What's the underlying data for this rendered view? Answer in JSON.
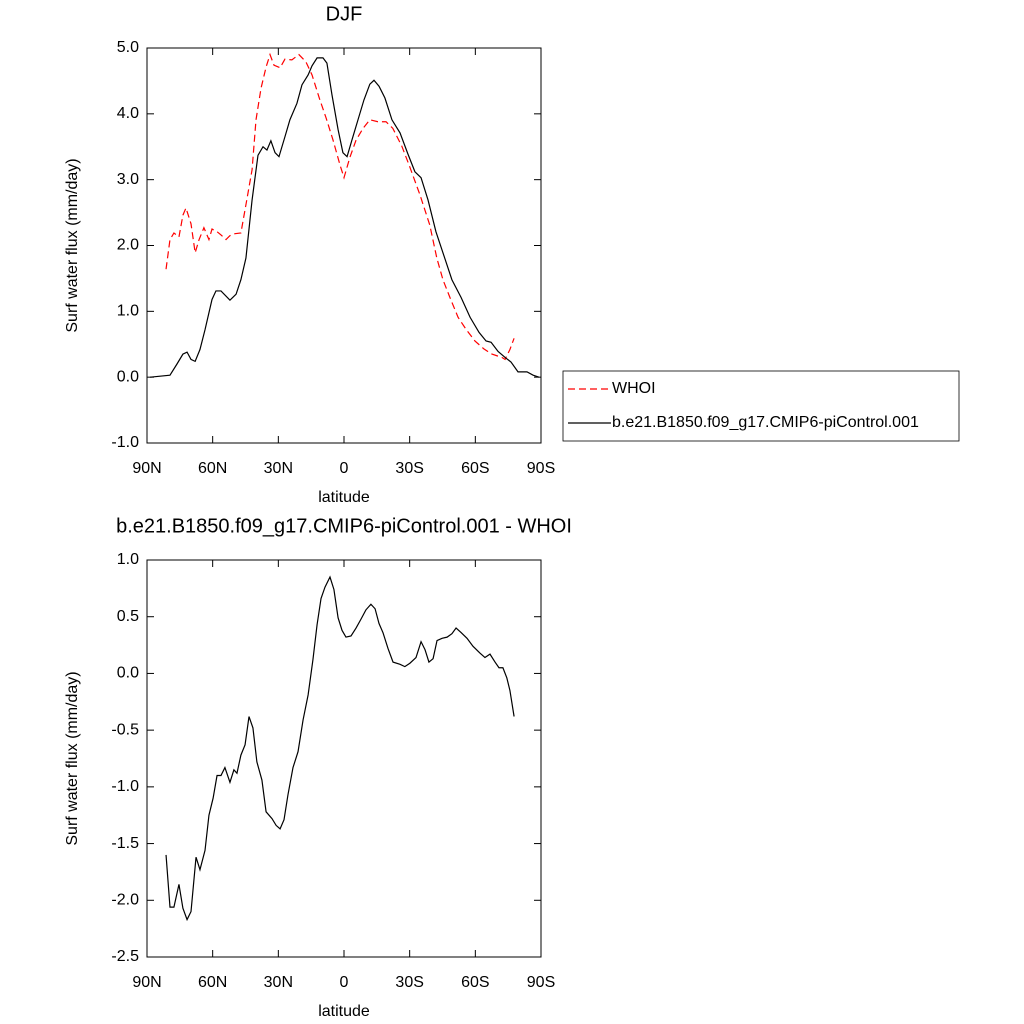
{
  "chart_data": [
    {
      "type": "line",
      "title": "DJF",
      "xlabel": "latitude",
      "ylabel": "Surf water flux (mm/day)",
      "xlim": [
        90,
        -90
      ],
      "xticks": [
        {
          "value": 90,
          "label": "90N"
        },
        {
          "value": 60,
          "label": "60N"
        },
        {
          "value": 30,
          "label": "30N"
        },
        0,
        {
          "value": -30,
          "label": "30S"
        },
        {
          "value": -60,
          "label": "60S"
        },
        {
          "value": -90,
          "label": "90S"
        }
      ],
      "ylim": [
        -1,
        5
      ],
      "yticks": [
        {
          "value": -1,
          "label": "-1.0"
        },
        {
          "value": 0,
          "label": "0.0"
        },
        {
          "value": 1,
          "label": "1.0"
        },
        {
          "value": 2,
          "label": "2.0"
        },
        {
          "value": 3,
          "label": "3.0"
        },
        {
          "value": 4,
          "label": "4.0"
        },
        {
          "value": 5,
          "label": "5.0"
        }
      ],
      "legend": "right",
      "series": [
        {
          "name": "WHOI",
          "color": "#ff0000",
          "dashed": true,
          "x": [
            81.3,
            79.5,
            77.7,
            75.4,
            73.6,
            72.2,
            69.9,
            68,
            66.2,
            64,
            61.7,
            60.3,
            58,
            56.2,
            53.9,
            52.1,
            49.8,
            47.1,
            44.8,
            42,
            40.2,
            37.9,
            35.6,
            33.8,
            32,
            29.2,
            27,
            23.8,
            20.6,
            17.4,
            14.6,
            11,
            8.2,
            5,
            1.8,
            0,
            -2.7,
            -5.5,
            -8.7,
            -11.8,
            -15.5,
            -19.2,
            -22.3,
            -26.4,
            -30.1,
            -34.7,
            -39.2,
            -42.4,
            -45.2,
            -48.4,
            -52.1,
            -55.7,
            -59.8,
            -63.9,
            -67.6,
            -72.1,
            -73.6,
            -75.8,
            -77.7
          ],
          "values": [
            1.64,
            2.09,
            2.19,
            2.13,
            2.46,
            2.57,
            2.33,
            1.89,
            2.09,
            2.27,
            2.09,
            2.25,
            2.21,
            2.16,
            2.09,
            2.15,
            2.18,
            2.19,
            2.62,
            3.15,
            3.91,
            4.39,
            4.71,
            4.9,
            4.74,
            4.7,
            4.83,
            4.82,
            4.9,
            4.79,
            4.59,
            4.21,
            3.94,
            3.6,
            3.22,
            3.03,
            3.34,
            3.6,
            3.78,
            3.91,
            3.88,
            3.88,
            3.78,
            3.51,
            3.19,
            2.77,
            2.31,
            1.81,
            1.48,
            1.21,
            0.91,
            0.73,
            0.55,
            0.43,
            0.35,
            0.3,
            0.27,
            0.42,
            0.59
          ]
        },
        {
          "name": "b.e21.B1850.f09_g17.CMIP6-piControl.001",
          "color": "#000000",
          "dashed": false,
          "x": [
            88.6,
            79.5,
            76.3,
            73.6,
            71.7,
            69.9,
            68,
            65.8,
            63.5,
            60.3,
            58.5,
            56.2,
            52.1,
            49.3,
            47.1,
            44.8,
            42,
            39.3,
            37,
            35.2,
            33.4,
            31.5,
            29.7,
            27,
            24.7,
            21.5,
            19.2,
            16.4,
            14.6,
            12.3,
            9.6,
            7.8,
            5.5,
            2.7,
            0.5,
            -1.4,
            -3.6,
            -6.4,
            -9.1,
            -11.8,
            -13.7,
            -16,
            -18.7,
            -21.9,
            -25.6,
            -29.2,
            -32.4,
            -35.2,
            -38.4,
            -42,
            -46.2,
            -49.3,
            -53.5,
            -57.6,
            -61.7,
            -64.9,
            -67.2,
            -70.4,
            -73.6,
            -76.3,
            -79.5,
            -83.6,
            -86.4,
            -89.1
          ],
          "values": [
            0,
            0.03,
            0.2,
            0.35,
            0.38,
            0.27,
            0.24,
            0.42,
            0.72,
            1.18,
            1.31,
            1.31,
            1.17,
            1.26,
            1.48,
            1.81,
            2.69,
            3.37,
            3.5,
            3.45,
            3.59,
            3.41,
            3.35,
            3.65,
            3.91,
            4.16,
            4.44,
            4.59,
            4.73,
            4.85,
            4.85,
            4.77,
            4.29,
            3.76,
            3.41,
            3.35,
            3.6,
            3.91,
            4.21,
            4.45,
            4.51,
            4.42,
            4.24,
            3.91,
            3.71,
            3.39,
            3.12,
            3.03,
            2.69,
            2.21,
            1.79,
            1.48,
            1.21,
            0.91,
            0.68,
            0.55,
            0.53,
            0.39,
            0.3,
            0.23,
            0.08,
            0.08,
            0.03,
            0
          ]
        }
      ]
    },
    {
      "type": "line",
      "title": "b.e21.B1850.f09_g17.CMIP6-piControl.001 - WHOI",
      "xlabel": "latitude",
      "ylabel": "Surf water flux (mm/day)",
      "xlim": [
        90,
        -90
      ],
      "xticks": [
        {
          "value": 90,
          "label": "90N"
        },
        {
          "value": 60,
          "label": "60N"
        },
        {
          "value": 30,
          "label": "30N"
        },
        0,
        {
          "value": -30,
          "label": "30S"
        },
        {
          "value": -60,
          "label": "60S"
        },
        {
          "value": -90,
          "label": "90S"
        }
      ],
      "ylim": [
        -2.5,
        1
      ],
      "yticks": [
        -2.5,
        {
          "value": -2,
          "label": "-2.0"
        },
        -1.5,
        {
          "value": -1,
          "label": "-1.0"
        },
        -0.5,
        {
          "value": 0,
          "label": "0.0"
        },
        0.5,
        {
          "value": 1,
          "label": "1.0"
        }
      ],
      "series": [
        {
          "color": "#000000",
          "dashed": false,
          "x": [
            81.3,
            79.5,
            77.7,
            75.4,
            73.6,
            71.7,
            69.9,
            67.6,
            65.8,
            63.5,
            61.7,
            59.8,
            58,
            56.2,
            54.4,
            52.1,
            50.3,
            48.9,
            47.1,
            45.2,
            43.4,
            41.6,
            39.8,
            37.5,
            35.6,
            32.9,
            31,
            29.2,
            27.4,
            25.6,
            23.3,
            21,
            18.7,
            16.4,
            14.2,
            12.3,
            10.5,
            8.7,
            6.4,
            4.6,
            2.7,
            0.9,
            -0.9,
            -3.2,
            -5.5,
            -7.8,
            -10,
            -12.3,
            -14.2,
            -16,
            -17.8,
            -20.1,
            -22.4,
            -25.6,
            -27.8,
            -30.1,
            -32.9,
            -35.2,
            -37,
            -38.8,
            -40.7,
            -42.5,
            -44.8,
            -47.1,
            -49.3,
            -51.2,
            -53.5,
            -56.2,
            -58.9,
            -62.1,
            -64.4,
            -66.7,
            -69,
            -70.8,
            -72.6,
            -74.4,
            -75.8,
            -77.7
          ],
          "values": [
            -1.6,
            -2.06,
            -2.06,
            -1.86,
            -2.07,
            -2.17,
            -2.1,
            -1.62,
            -1.73,
            -1.56,
            -1.25,
            -1.1,
            -0.9,
            -0.9,
            -0.83,
            -0.96,
            -0.85,
            -0.88,
            -0.72,
            -0.63,
            -0.38,
            -0.48,
            -0.78,
            -0.94,
            -1.22,
            -1.28,
            -1.34,
            -1.37,
            -1.29,
            -1.07,
            -0.83,
            -0.69,
            -0.41,
            -0.19,
            0.12,
            0.43,
            0.66,
            0.76,
            0.85,
            0.74,
            0.49,
            0.38,
            0.32,
            0.33,
            0.4,
            0.48,
            0.56,
            0.61,
            0.57,
            0.44,
            0.36,
            0.22,
            0.1,
            0.08,
            0.06,
            0.09,
            0.14,
            0.28,
            0.21,
            0.1,
            0.13,
            0.29,
            0.31,
            0.32,
            0.35,
            0.4,
            0.36,
            0.31,
            0.24,
            0.18,
            0.14,
            0.17,
            0.1,
            0.05,
            0.05,
            -0.04,
            -0.15,
            -0.38
          ]
        }
      ]
    }
  ]
}
